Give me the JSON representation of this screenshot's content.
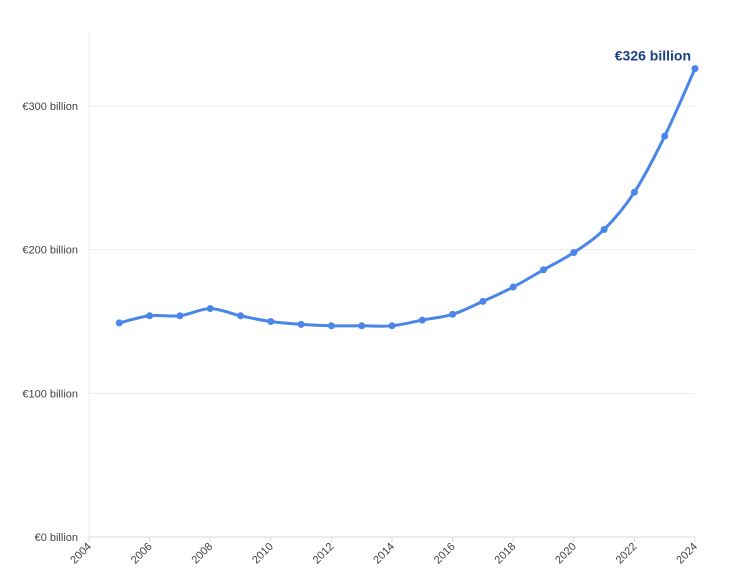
{
  "chart_data": {
    "type": "line",
    "title": "",
    "xlabel": "",
    "ylabel": "",
    "x_ticks": [
      "2004",
      "2006",
      "2008",
      "2010",
      "2012",
      "2014",
      "2016",
      "2018",
      "2020",
      "2022",
      "2024"
    ],
    "y_ticks": [
      "€0 billion",
      "€100 billion",
      "€200 billion",
      "€300 billion"
    ],
    "xlim": [
      2004,
      2024
    ],
    "ylim": [
      0,
      350
    ],
    "grid": true,
    "series": [
      {
        "x": [
          2005,
          2006,
          2007,
          2008,
          2009,
          2010,
          2011,
          2012,
          2013,
          2014,
          2015,
          2016,
          2017,
          2018,
          2019,
          2020,
          2021,
          2022,
          2023,
          2024
        ],
        "values": [
          149,
          154,
          154,
          159,
          154,
          150,
          148,
          147,
          147,
          147,
          151,
          155,
          164,
          174,
          186,
          198,
          214,
          240,
          279,
          326
        ]
      }
    ],
    "annotation": {
      "text": "€326 billion",
      "x": 2024,
      "y": 326
    },
    "colors": {
      "line": "#4a86e8",
      "annotation": "#1a3f8f",
      "grid": "#ececec",
      "axis": "#d9d9d9"
    }
  }
}
